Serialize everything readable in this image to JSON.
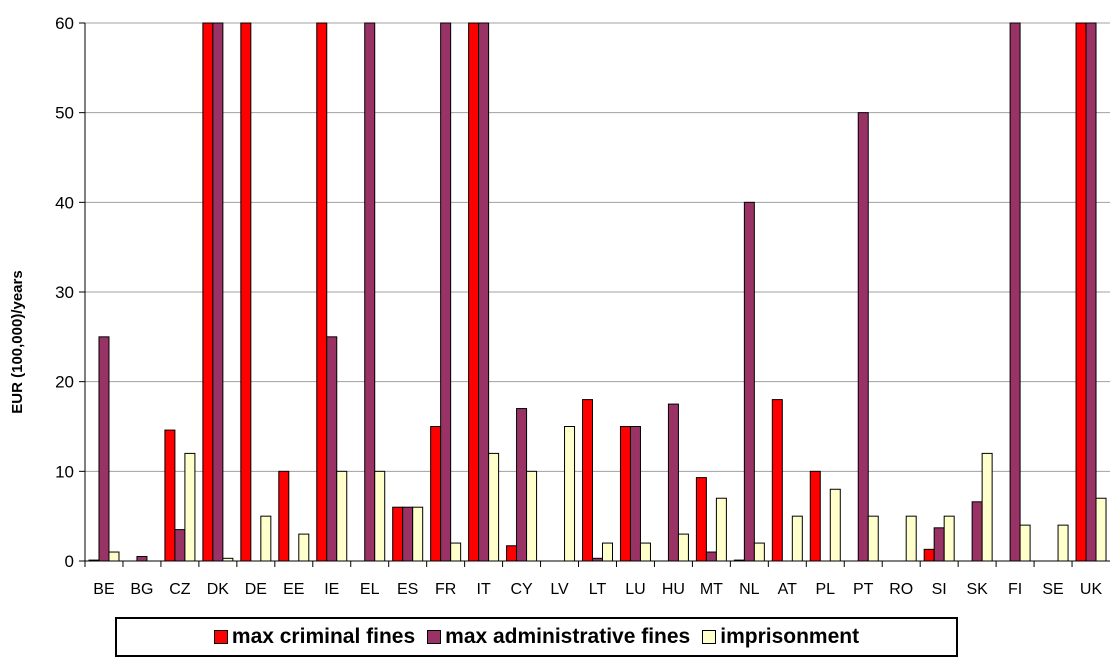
{
  "chart_data": {
    "type": "bar",
    "title": "",
    "xlabel": "",
    "ylabel": "EUR (100,000)/years",
    "ylim": [
      0,
      60
    ],
    "yticks": [
      0,
      10,
      20,
      30,
      40,
      50,
      60
    ],
    "grid": true,
    "legend_position": "bottom",
    "categories": [
      "BE",
      "BG",
      "CZ",
      "DK",
      "DE",
      "EE",
      "IE",
      "EL",
      "ES",
      "FR",
      "IT",
      "CY",
      "LV",
      "LT",
      "LU",
      "HU",
      "MT",
      "NL",
      "AT",
      "PL",
      "PT",
      "RO",
      "SI",
      "SK",
      "FI",
      "SE",
      "UK"
    ],
    "series": [
      {
        "name": "max criminal fines",
        "color": "#ff0000",
        "values": [
          0.1,
          0,
          14.6,
          61,
          61,
          10,
          61,
          0,
          6,
          15,
          61,
          1.7,
          0,
          18,
          15,
          0,
          9.3,
          0.1,
          18,
          10,
          0,
          0,
          1.3,
          0,
          0,
          0,
          61
        ]
      },
      {
        "name": "max administrative fines",
        "color": "#993366",
        "values": [
          25,
          0.5,
          3.5,
          61,
          0,
          0,
          25,
          60,
          6,
          61,
          61,
          17,
          0,
          0.3,
          15,
          17.5,
          1,
          40,
          0,
          0,
          50,
          0,
          3.7,
          6.6,
          61,
          0,
          61
        ]
      },
      {
        "name": "imprisonment",
        "color": "#ffffcc",
        "values": [
          1,
          0,
          12,
          0.3,
          5,
          3,
          10,
          10,
          6,
          2,
          12,
          10,
          15,
          2,
          2,
          3,
          7,
          2,
          5,
          8,
          5,
          5,
          5,
          12,
          4,
          4,
          7
        ]
      }
    ]
  }
}
